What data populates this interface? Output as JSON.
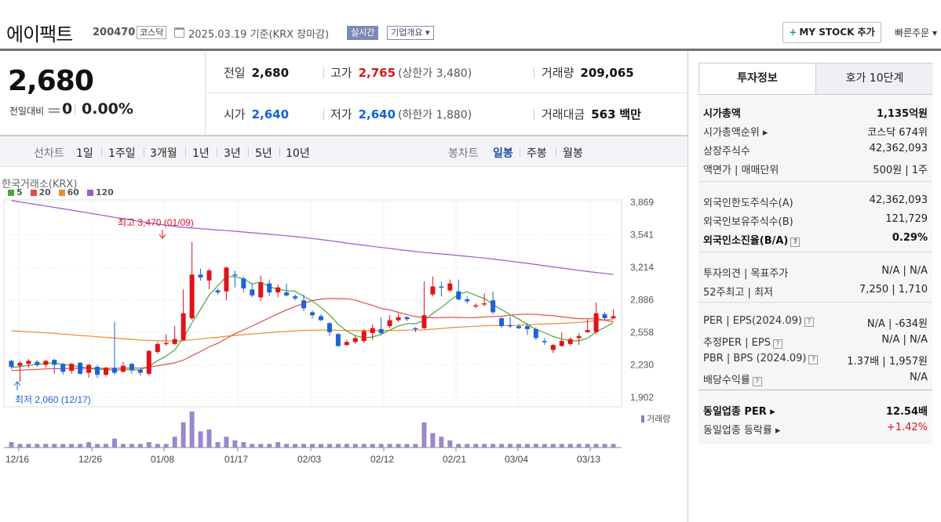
{
  "header": {
    "name": "에이팩트",
    "code": "200470",
    "market": "코스닥",
    "date": "2025.03.19  기준(KRX 장마감)",
    "realtime": "실시간",
    "company": "기업개요 ▾",
    "mystock": "MY STOCK 추가",
    "mystock_plus": "+",
    "quick": "빠른주문 ▾"
  },
  "summary": {
    "price": "2,680",
    "change_label": "전일대비",
    "change": "0",
    "change_pct": "0.00%",
    "prev_label": "전일",
    "prev": "2,680",
    "high_label": "고가",
    "high": "2,765",
    "upper_limit": "(상한가 3,480)",
    "volume_label": "거래량",
    "volume": "209,065",
    "open_label": "시가",
    "open": "2,640",
    "low_label": "저가",
    "low": "2,640",
    "lower_limit": "(하한가 1,880)",
    "amount_label": "거래대금",
    "amount": "563",
    "amount_unit": "백만"
  },
  "tabs": {
    "line_label": "선차트",
    "periods": [
      "1일",
      "1주일",
      "3개월",
      "1년",
      "3년",
      "5년",
      "10년"
    ],
    "candle_label": "봉차트",
    "candles": [
      "일봉",
      "주봉",
      "월봉"
    ],
    "candle_selected": "일봉"
  },
  "chart_data": {
    "type": "candlestick",
    "exchange": "한국거래소(KRX)",
    "legend": [
      {
        "name": "5",
        "color": "#4aa53e"
      },
      {
        "name": "20",
        "color": "#e24a4a"
      },
      {
        "name": "60",
        "color": "#f08a30"
      },
      {
        "name": "120",
        "color": "#9b59d0"
      }
    ],
    "yticks": [
      "3,869",
      "3,541",
      "3,214",
      "2,886",
      "2,558",
      "2,230",
      "1,902"
    ],
    "ylim": [
      1902,
      3869
    ],
    "xticks": [
      "12/16",
      "12/26",
      "01/08",
      "01/17",
      "02/03",
      "02/12",
      "02/21",
      "03/04",
      "03/13"
    ],
    "volume_label": "거래량",
    "high_annotation": "최고 3,470 (01/09)",
    "low_annotation": "최저 2,060 (12/17)",
    "candles": [
      [
        2270,
        2210,
        2280,
        2190
      ],
      [
        2220,
        2250,
        2270,
        2060
      ],
      [
        2240,
        2270,
        2290,
        2200
      ],
      [
        2260,
        2230,
        2280,
        2210
      ],
      [
        2230,
        2270,
        2280,
        2200
      ],
      [
        2280,
        2230,
        2290,
        2140
      ],
      [
        2240,
        2160,
        2250,
        2130
      ],
      [
        2170,
        2240,
        2250,
        2140
      ],
      [
        2250,
        2140,
        2260,
        2130
      ],
      [
        2150,
        2230,
        2240,
        2100
      ],
      [
        2210,
        2130,
        2230,
        2100
      ],
      [
        2130,
        2200,
        2210,
        2110
      ],
      [
        2200,
        2150,
        2660,
        2130
      ],
      [
        2160,
        2220,
        2260,
        2150
      ],
      [
        2240,
        2180,
        2250,
        2140
      ],
      [
        2180,
        2150,
        2200,
        2120
      ],
      [
        2140,
        2370,
        2380,
        2120
      ],
      [
        2360,
        2440,
        2460,
        2340
      ],
      [
        2450,
        2450,
        2540,
        2420
      ],
      [
        2440,
        2490,
        2620,
        2430
      ],
      [
        2480,
        2750,
        2990,
        2470
      ],
      [
        2700,
        3140,
        3470,
        2680
      ],
      [
        3140,
        3110,
        3200,
        3080
      ],
      [
        3080,
        3180,
        3200,
        2990
      ],
      [
        2980,
        2960,
        3000,
        2940
      ],
      [
        2970,
        3210,
        3220,
        2880
      ],
      [
        3140,
        3130,
        3180,
        3010
      ],
      [
        3100,
        3000,
        3120,
        2960
      ],
      [
        2990,
        2930,
        3050,
        2910
      ],
      [
        2910,
        3060,
        3130,
        2870
      ],
      [
        3050,
        2960,
        3090,
        2920
      ],
      [
        2960,
        3010,
        3040,
        2910
      ],
      [
        2960,
        2930,
        3050,
        2920
      ],
      [
        2920,
        2900,
        2940,
        2880
      ],
      [
        2880,
        2800,
        2940,
        2770
      ],
      [
        2760,
        2730,
        2780,
        2700
      ],
      [
        2720,
        2680,
        2740,
        2670
      ],
      [
        2650,
        2560,
        2660,
        2520
      ],
      [
        2540,
        2420,
        2550,
        2410
      ],
      [
        2430,
        2460,
        2480,
        2420
      ],
      [
        2460,
        2500,
        2530,
        2440
      ],
      [
        2470,
        2570,
        2590,
        2450
      ],
      [
        2550,
        2600,
        2640,
        2480
      ],
      [
        2590,
        2550,
        2710,
        2530
      ],
      [
        2620,
        2680,
        2730,
        2600
      ],
      [
        2680,
        2710,
        2750,
        2660
      ],
      [
        2710,
        2690,
        2720,
        2670
      ],
      [
        2600,
        2590,
        2610,
        2560
      ],
      [
        2600,
        2730,
        3070,
        2590
      ],
      [
        2940,
        3020,
        3120,
        2920
      ],
      [
        3020,
        3010,
        3070,
        2920
      ],
      [
        2980,
        3050,
        3090,
        2960
      ],
      [
        2970,
        2890,
        3090,
        2880
      ],
      [
        2890,
        2870,
        2920,
        2850
      ],
      [
        2830,
        2830,
        2850,
        2800
      ],
      [
        2840,
        2850,
        2950,
        2820
      ],
      [
        2880,
        2760,
        2970,
        2740
      ],
      [
        2700,
        2620,
        2710,
        2600
      ],
      [
        2630,
        2620,
        2720,
        2600
      ],
      [
        2620,
        2600,
        2640,
        2590
      ],
      [
        2620,
        2590,
        2650,
        2530
      ],
      [
        2590,
        2500,
        2610,
        2480
      ],
      [
        2470,
        2460,
        2500,
        2430
      ],
      [
        2380,
        2430,
        2440,
        2350
      ],
      [
        2420,
        2470,
        2560,
        2410
      ],
      [
        2440,
        2490,
        2510,
        2420
      ],
      [
        2500,
        2520,
        2550,
        2430
      ],
      [
        2560,
        2580,
        2690,
        2550
      ],
      [
        2560,
        2750,
        2860,
        2540
      ],
      [
        2740,
        2700,
        2760,
        2680
      ],
      [
        2700,
        2720,
        2790,
        2690
      ]
    ],
    "volumes": [
      3,
      2,
      2,
      2,
      2,
      2,
      2,
      2,
      2,
      3,
      2,
      2,
      5,
      2,
      2,
      2,
      3,
      2,
      2,
      6,
      14,
      20,
      9,
      10,
      3,
      6,
      4,
      3,
      2,
      2,
      2,
      3,
      2,
      2,
      2,
      2,
      2,
      2,
      2,
      2,
      2,
      2,
      2,
      2,
      2,
      2,
      2,
      2,
      14,
      8,
      6,
      4,
      2,
      2,
      2,
      2,
      2,
      2,
      2,
      2,
      2,
      2,
      2,
      2,
      2,
      2,
      2,
      2,
      2,
      2,
      2
    ]
  },
  "right_panel": {
    "tab_active": "투자정보",
    "tab_inactive": "호가 10단계",
    "rows": [
      {
        "k": "시가총액",
        "v": "1,135억원",
        "bold": true
      },
      {
        "k": "시가총액순위 ▸",
        "v": "코스닥 674위"
      },
      {
        "k": "상장주식수",
        "v": "42,362,093"
      },
      {
        "k": "액면가 | 매매단위",
        "v": "500원 | 1주"
      },
      {
        "k": "외국인한도주식수(A)",
        "v": "42,362,093"
      },
      {
        "k": "외국인보유주식수(B)",
        "v": "121,729"
      },
      {
        "k": "외국인소진율(B/A)",
        "v": "0.29%",
        "bold": true
      },
      {
        "k": "투자의견 | 목표주가",
        "v": "N/A | N/A"
      },
      {
        "k": "52주최고 | 최저",
        "v": "7,250 | 1,710"
      },
      {
        "k": "PER | EPS(2024.09)",
        "v": "N/A | -634원"
      },
      {
        "k": "추정PER | EPS",
        "v": "N/A | N/A"
      },
      {
        "k": "PBR | BPS (2024.09)",
        "v": "1.37배 | 1,957원"
      },
      {
        "k": "배당수익률",
        "v": "N/A"
      },
      {
        "k": "동일업종 PER ▸",
        "v": "12.54배",
        "bold": true
      },
      {
        "k": "동일업종 등락률 ▸",
        "v": "+1.42%"
      }
    ],
    "qmark": "?"
  }
}
